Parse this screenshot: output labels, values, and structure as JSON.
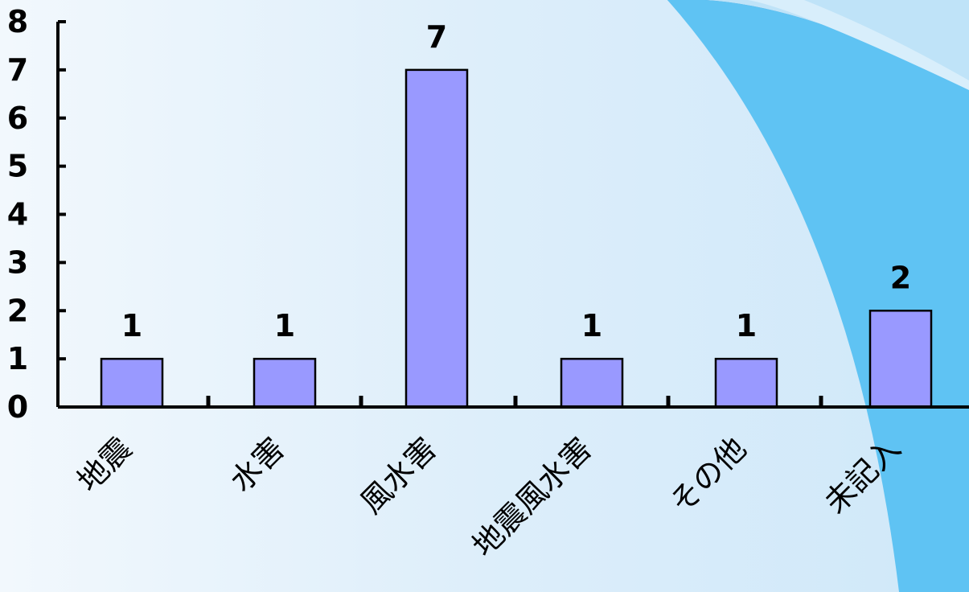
{
  "colors": {
    "bar_fill": "#9999ff",
    "bar_stroke": "#000000",
    "axis": "#000000",
    "background_light": "#f2f8fd",
    "decor_blue": "#5fc3f3",
    "decor_dark_blue": "#3b8ecb"
  },
  "chart_data": {
    "type": "bar",
    "categories": [
      "地震",
      "水害",
      "風水害",
      "地震風水害",
      "その他",
      "未記入"
    ],
    "values": [
      1,
      1,
      7,
      1,
      1,
      2
    ],
    "data_labels": [
      "1",
      "1",
      "7",
      "1",
      "1",
      "2"
    ],
    "y_ticks": [
      "0",
      "1",
      "2",
      "3",
      "4",
      "5",
      "6",
      "7",
      "8"
    ],
    "ylim": [
      0,
      8
    ],
    "title": "",
    "xlabel": "",
    "ylabel": "",
    "grid": false,
    "legend": "none",
    "category_label_rotation": "-45deg"
  }
}
